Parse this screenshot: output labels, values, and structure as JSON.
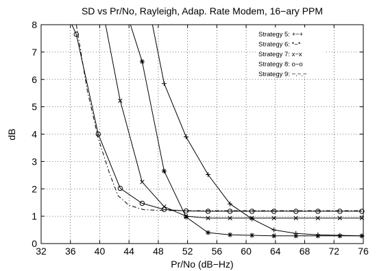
{
  "chart_data": {
    "type": "line",
    "title": "SD vs Pr/No, Rayleigh, Adap. Rate Modem, 16−ary PPM",
    "xlabel": "Pr/No (dB−Hz)",
    "ylabel": "dB",
    "xlim": [
      32,
      76
    ],
    "ylim": [
      0,
      8
    ],
    "xticks": [
      32,
      36,
      40,
      44,
      48,
      52,
      56,
      60,
      64,
      68,
      72,
      76
    ],
    "yticks": [
      0,
      1,
      2,
      3,
      4,
      5,
      6,
      7,
      8
    ],
    "grid": true,
    "legend_position": "top-right",
    "series": [
      {
        "name": "Strategy 5: +−+",
        "marker": "plus",
        "line": "solid",
        "x": [
          47.2,
          48.8,
          51.8,
          54.8,
          57.8,
          60.8,
          63.8,
          66.8,
          69.8,
          72.8,
          75.8
        ],
        "y": [
          8,
          5.85,
          3.9,
          2.52,
          1.45,
          0.9,
          0.5,
          0.37,
          0.32,
          0.3,
          0.28
        ],
        "marker_x": [
          48.8,
          51.8,
          54.8,
          57.8,
          60.8,
          63.8,
          66.8,
          69.8,
          72.8,
          75.8
        ],
        "marker_y": [
          5.85,
          3.9,
          2.52,
          1.45,
          0.9,
          0.5,
          0.37,
          0.32,
          0.3,
          0.28
        ]
      },
      {
        "name": "Strategy 6: *−*",
        "marker": "star",
        "line": "solid",
        "x": [
          44.2,
          45.8,
          48.8,
          51.8,
          54.8,
          57.8,
          60.8,
          63.8,
          66.8,
          69.8,
          72.8,
          75.8
        ],
        "y": [
          8,
          6.65,
          2.65,
          0.97,
          0.4,
          0.32,
          0.3,
          0.28,
          0.28,
          0.28,
          0.28,
          0.28
        ],
        "marker_x": [
          45.8,
          48.8,
          51.8,
          54.8,
          57.8,
          60.8,
          63.8,
          66.8,
          69.8,
          72.8,
          75.8
        ],
        "marker_y": [
          6.65,
          2.65,
          0.97,
          0.4,
          0.32,
          0.3,
          0.28,
          0.28,
          0.28,
          0.28,
          0.28
        ]
      },
      {
        "name": "Strategy 7: x−x",
        "marker": "x",
        "line": "solid",
        "x": [
          40.8,
          42.8,
          45.8,
          48.8,
          51.8,
          54.8,
          57.8,
          60.8,
          63.8,
          66.8,
          69.8,
          72.8,
          75.8
        ],
        "y": [
          8,
          5.22,
          2.25,
          1.35,
          1.0,
          0.93,
          0.93,
          0.93,
          0.93,
          0.93,
          0.93,
          0.93,
          0.93
        ],
        "marker_x": [
          42.8,
          45.8,
          48.8,
          51.8,
          54.8,
          57.8,
          60.8,
          63.8,
          66.8,
          69.8,
          72.8,
          75.8
        ],
        "marker_y": [
          5.22,
          2.25,
          1.35,
          1.0,
          0.93,
          0.93,
          0.93,
          0.93,
          0.93,
          0.93,
          0.93,
          0.93
        ]
      },
      {
        "name": "Strategy 8: o−o",
        "marker": "circle",
        "line": "solid",
        "x": [
          36.2,
          36.8,
          39.8,
          42.8,
          45.8,
          48.8,
          51.8,
          54.8,
          57.8,
          60.8,
          63.8,
          66.8,
          69.8,
          72.8,
          75.8
        ],
        "y": [
          8,
          7.65,
          4.0,
          2.02,
          1.47,
          1.25,
          1.19,
          1.18,
          1.18,
          1.18,
          1.18,
          1.18,
          1.18,
          1.18,
          1.18
        ],
        "marker_x": [
          36.8,
          39.8,
          42.8,
          45.8,
          48.8,
          51.8,
          54.8,
          57.8,
          60.8,
          63.8,
          66.8,
          69.8,
          72.8,
          75.8
        ],
        "marker_y": [
          7.65,
          4.0,
          2.02,
          1.47,
          1.25,
          1.19,
          1.18,
          1.18,
          1.18,
          1.18,
          1.18,
          1.18,
          1.18,
          1.18
        ]
      },
      {
        "name": "Strategy 9: −.−.−",
        "marker": "none",
        "line": "dashdot",
        "x": [
          36.8,
          38.3,
          39.8,
          41.3,
          42.5,
          44.0,
          46.0,
          48.8,
          51.8,
          54.8,
          57.8,
          60.8,
          63.8,
          66.8,
          69.8,
          72.8,
          75.8
        ],
        "y": [
          8,
          5.6,
          3.85,
          2.6,
          1.75,
          1.4,
          1.24,
          1.21,
          1.2,
          1.2,
          1.2,
          1.2,
          1.2,
          1.2,
          1.2,
          1.2,
          1.2
        ]
      }
    ]
  }
}
